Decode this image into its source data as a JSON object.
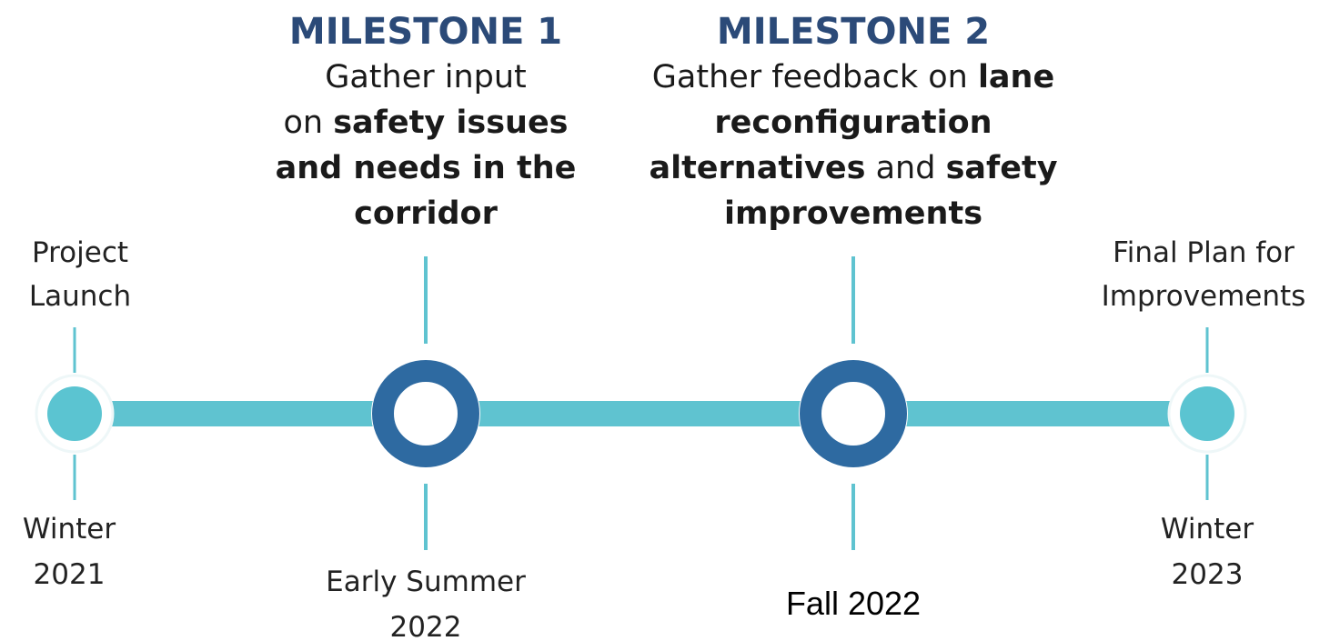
{
  "milestones": [
    {
      "title": "MILESTONE 1",
      "lines": [
        [
          {
            "text": "Gather input",
            "bold": false
          }
        ],
        [
          {
            "text": "on ",
            "bold": false
          },
          {
            "text": "safety issues",
            "bold": true
          }
        ],
        [
          {
            "text": "and needs in the",
            "bold": true
          }
        ],
        [
          {
            "text": "corridor",
            "bold": true
          }
        ]
      ]
    },
    {
      "title": "MILESTONE 2",
      "lines": [
        [
          {
            "text": "Gather feedback on ",
            "bold": false
          },
          {
            "text": "lane",
            "bold": true
          }
        ],
        [
          {
            "text": "reconfiguration",
            "bold": true
          }
        ],
        [
          {
            "text": "alternatives",
            "bold": true
          },
          {
            "text": " and ",
            "bold": false
          },
          {
            "text": "safety",
            "bold": true
          }
        ],
        [
          {
            "text": "improvements",
            "bold": true
          }
        ]
      ]
    }
  ],
  "nodes": [
    {
      "label": [
        "Project",
        "Launch"
      ],
      "date": [
        "Winter",
        "2021"
      ]
    },
    {
      "date": [
        "Early Summer",
        "2022"
      ]
    },
    {
      "date": [
        "Fall 2022"
      ]
    },
    {
      "label": [
        "Final Plan for",
        "Improvements"
      ],
      "date": [
        "Winter",
        "2023"
      ]
    }
  ]
}
